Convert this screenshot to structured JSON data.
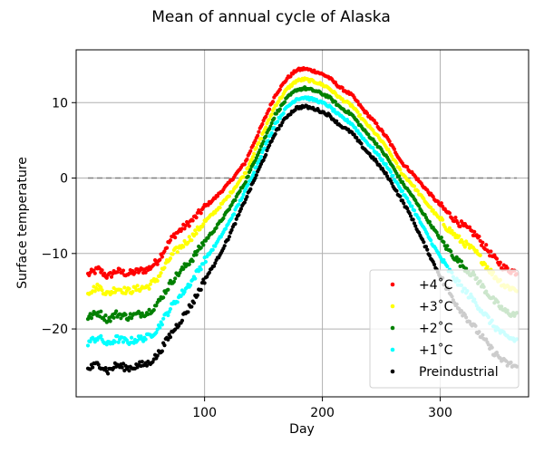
{
  "chart_data": {
    "type": "scatter",
    "title": "Mean of annual cycle of Alaska",
    "xlabel": "Day",
    "ylabel": "Surface temperature",
    "xlim": [
      -9,
      375
    ],
    "ylim": [
      -29,
      17
    ],
    "xticks": [
      100,
      200,
      300
    ],
    "yticks": [
      -20,
      -10,
      0,
      10
    ],
    "grid": true,
    "legend_position": "lower right",
    "reference_line": {
      "y": 0,
      "x_range": [
        1,
        365
      ],
      "style": "dashed",
      "color": "#808080"
    },
    "series": [
      {
        "name": "+4˚C",
        "color": "#ff0000",
        "offset": 5.0,
        "low_offset": 12.5
      },
      {
        "name": "+3˚C",
        "color": "#ffff00",
        "offset": 3.6,
        "low_offset": 10.2
      },
      {
        "name": "+2˚C",
        "color": "#008000",
        "offset": 2.4,
        "low_offset": 6.8
      },
      {
        "name": "+1˚C",
        "color": "#00ffff",
        "offset": 1.2,
        "low_offset": 3.5
      },
      {
        "name": "Preindustrial",
        "color": "#000000",
        "offset": 0.0,
        "low_offset": 0.0
      }
    ],
    "preindustrial_points": [
      [
        1,
        -25.3
      ],
      [
        10,
        -24.6
      ],
      [
        18,
        -25.6
      ],
      [
        25,
        -24.8
      ],
      [
        35,
        -25.2
      ],
      [
        45,
        -24.8
      ],
      [
        52,
        -24.6
      ],
      [
        60,
        -23.5
      ],
      [
        70,
        -21.0
      ],
      [
        80,
        -18.8
      ],
      [
        90,
        -16.5
      ],
      [
        100,
        -13.5
      ],
      [
        110,
        -11.0
      ],
      [
        120,
        -8.0
      ],
      [
        130,
        -4.5
      ],
      [
        140,
        -1.0
      ],
      [
        150,
        2.5
      ],
      [
        160,
        6.0
      ],
      [
        170,
        8.2
      ],
      [
        178,
        9.3
      ],
      [
        185,
        9.5
      ],
      [
        195,
        9.1
      ],
      [
        205,
        8.4
      ],
      [
        215,
        7.0
      ],
      [
        225,
        6.0
      ],
      [
        235,
        4.0
      ],
      [
        245,
        2.3
      ],
      [
        255,
        0.3
      ],
      [
        265,
        -2.3
      ],
      [
        275,
        -5.0
      ],
      [
        285,
        -8.3
      ],
      [
        295,
        -11.5
      ],
      [
        305,
        -14.5
      ],
      [
        315,
        -17.0
      ],
      [
        325,
        -19.0
      ],
      [
        335,
        -21.0
      ],
      [
        345,
        -23.0
      ],
      [
        355,
        -24.5
      ],
      [
        365,
        -25.0
      ]
    ]
  }
}
